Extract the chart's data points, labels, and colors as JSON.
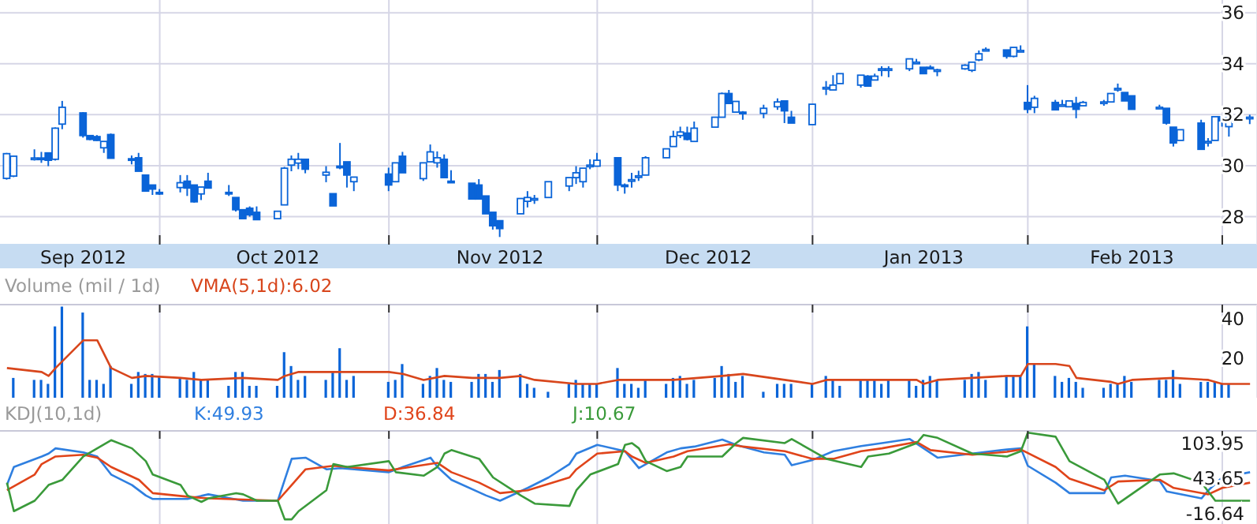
{
  "chart_data": [
    {
      "type": "candlestick",
      "color": "#0a64d8",
      "x": [
        "2012-09-06",
        "2012-09-07",
        "2012-09-10",
        "2012-09-11",
        "2012-09-12",
        "2012-09-13",
        "2012-09-14",
        "2012-09-17",
        "2012-09-18",
        "2012-09-19",
        "2012-09-20",
        "2012-09-21",
        "2012-09-24",
        "2012-09-25",
        "2012-09-26",
        "2012-09-27",
        "2012-09-28",
        "2012-10-01",
        "2012-10-02",
        "2012-10-03",
        "2012-10-04",
        "2012-10-05",
        "2012-10-08",
        "2012-10-09",
        "2012-10-10",
        "2012-10-11",
        "2012-10-12",
        "2012-10-15",
        "2012-10-16",
        "2012-10-17",
        "2012-10-18",
        "2012-10-19",
        "2012-10-22",
        "2012-10-23",
        "2012-10-24",
        "2012-10-25",
        "2012-10-26",
        "2012-10-31",
        "2012-11-01",
        "2012-11-02",
        "2012-11-05",
        "2012-11-06",
        "2012-11-07",
        "2012-11-08",
        "2012-11-09",
        "2012-11-12",
        "2012-11-13",
        "2012-11-14",
        "2012-11-15",
        "2012-11-16",
        "2012-11-19",
        "2012-11-20",
        "2012-11-21",
        "2012-11-23",
        "2012-11-26",
        "2012-11-27",
        "2012-11-28",
        "2012-11-29",
        "2012-11-30",
        "2012-12-03",
        "2012-12-04",
        "2012-12-05",
        "2012-12-06",
        "2012-12-07",
        "2012-12-10",
        "2012-12-11",
        "2012-12-12",
        "2012-12-13",
        "2012-12-14",
        "2012-12-17",
        "2012-12-18",
        "2012-12-19",
        "2012-12-20",
        "2012-12-21",
        "2012-12-24",
        "2012-12-26",
        "2012-12-27",
        "2012-12-28",
        "2012-12-31",
        "2013-01-02",
        "2013-01-03",
        "2013-01-04",
        "2013-01-07",
        "2013-01-08",
        "2013-01-09",
        "2013-01-10",
        "2013-01-11",
        "2013-01-14",
        "2013-01-15",
        "2013-01-16",
        "2013-01-17",
        "2013-01-18",
        "2013-01-22",
        "2013-01-23",
        "2013-01-24",
        "2013-01-25",
        "2013-01-28",
        "2013-01-29",
        "2013-01-30",
        "2013-01-31",
        "2013-02-01",
        "2013-02-04",
        "2013-02-05",
        "2013-02-06",
        "2013-02-07",
        "2013-02-08",
        "2013-02-11",
        "2013-02-12",
        "2013-02-13",
        "2013-02-14",
        "2013-02-15",
        "2013-02-19",
        "2013-02-20",
        "2013-02-21",
        "2013-02-22",
        "2013-02-25",
        "2013-02-26",
        "2013-02-27",
        "2013-02-28",
        "2013-03-01",
        "2013-03-04"
      ],
      "ohlc": [
        [
          29.5,
          30.5,
          29.45,
          30.47
        ],
        [
          29.59,
          30.4,
          29.55,
          30.37
        ],
        [
          30.28,
          30.64,
          30.2,
          30.3
        ],
        [
          30.3,
          30.54,
          30.11,
          30.26
        ],
        [
          30.5,
          30.5,
          29.98,
          30.21
        ],
        [
          30.25,
          31.5,
          30.2,
          31.47
        ],
        [
          31.63,
          32.54,
          31.43,
          32.29
        ],
        [
          32.07,
          32.1,
          31.1,
          31.18
        ],
        [
          31.18,
          31.2,
          31.0,
          31.03
        ],
        [
          31.14,
          31.2,
          30.97,
          30.99
        ],
        [
          30.7,
          30.95,
          30.5,
          30.95
        ],
        [
          31.22,
          31.26,
          30.28,
          30.29
        ],
        [
          30.27,
          30.4,
          30.05,
          30.25
        ],
        [
          30.31,
          30.5,
          29.78,
          29.78
        ],
        [
          29.63,
          29.63,
          29.0,
          29.0
        ],
        [
          29.24,
          29.24,
          28.85,
          29.08
        ],
        [
          28.95,
          29.08,
          28.85,
          28.92
        ],
        [
          29.14,
          29.63,
          28.95,
          29.33
        ],
        [
          29.39,
          29.63,
          28.81,
          29.12
        ],
        [
          29.24,
          29.24,
          28.55,
          28.58
        ],
        [
          28.89,
          29.16,
          28.65,
          29.16
        ],
        [
          29.39,
          29.72,
          29.12,
          29.12
        ],
        [
          28.95,
          29.24,
          28.81,
          28.94
        ],
        [
          28.75,
          28.75,
          28.2,
          28.27
        ],
        [
          28.27,
          28.27,
          27.92,
          27.92
        ],
        [
          28.33,
          28.4,
          28.0,
          28.07
        ],
        [
          28.17,
          28.4,
          27.88,
          27.88
        ],
        [
          27.92,
          28.21,
          27.92,
          28.21
        ],
        [
          28.46,
          29.95,
          28.46,
          29.9
        ],
        [
          30.02,
          30.4,
          29.78,
          30.25
        ],
        [
          30.1,
          30.5,
          29.86,
          30.25
        ],
        [
          30.25,
          30.25,
          29.7,
          29.86
        ],
        [
          29.63,
          29.98,
          29.35,
          29.74
        ],
        [
          28.9,
          28.9,
          28.42,
          28.42
        ],
        [
          29.98,
          30.89,
          29.86,
          29.96
        ],
        [
          30.15,
          30.15,
          29.14,
          29.63
        ],
        [
          29.37,
          29.55,
          29.0,
          29.55
        ],
        [
          29.67,
          29.92,
          29.0,
          29.24
        ],
        [
          29.37,
          30.11,
          29.37,
          30.11
        ],
        [
          30.37,
          30.54,
          29.72,
          29.72
        ],
        [
          29.49,
          30.11,
          29.4,
          30.11
        ],
        [
          30.15,
          30.83,
          30.15,
          30.54
        ],
        [
          30.11,
          30.56,
          29.92,
          30.31
        ],
        [
          30.25,
          30.44,
          29.53,
          29.53
        ],
        [
          29.39,
          29.82,
          29.33,
          29.37
        ],
        [
          29.31,
          29.31,
          28.69,
          28.69
        ],
        [
          29.24,
          29.47,
          28.69,
          28.69
        ],
        [
          28.81,
          28.81,
          28.11,
          28.11
        ],
        [
          28.17,
          28.17,
          27.49,
          27.64
        ],
        [
          27.84,
          27.84,
          27.2,
          27.53
        ],
        [
          28.11,
          28.71,
          28.11,
          28.71
        ],
        [
          28.6,
          29.0,
          28.36,
          28.75
        ],
        [
          28.71,
          28.85,
          28.5,
          28.71
        ],
        [
          28.75,
          29.37,
          28.75,
          29.37
        ],
        [
          29.2,
          29.53,
          29.0,
          29.53
        ],
        [
          29.53,
          29.98,
          29.28,
          29.72
        ],
        [
          29.37,
          29.9,
          29.14,
          29.9
        ],
        [
          30.0,
          30.25,
          29.86,
          30.02
        ],
        [
          29.98,
          30.5,
          29.98,
          30.21
        ],
        [
          30.31,
          30.31,
          29.0,
          29.24
        ],
        [
          29.24,
          29.3,
          28.9,
          29.22
        ],
        [
          29.4,
          29.72,
          29.14,
          29.45
        ],
        [
          29.6,
          29.8,
          29.4,
          29.6
        ],
        [
          29.63,
          30.37,
          29.63,
          30.31
        ],
        [
          30.31,
          30.66,
          30.31,
          30.66
        ],
        [
          30.75,
          31.37,
          30.75,
          31.14
        ],
        [
          31.18,
          31.53,
          31.08,
          31.32
        ],
        [
          31.28,
          31.53,
          30.99,
          31.03
        ],
        [
          30.95,
          31.73,
          30.95,
          31.47
        ],
        [
          31.51,
          31.9,
          31.51,
          31.9
        ],
        [
          31.9,
          32.87,
          31.9,
          32.83
        ],
        [
          32.83,
          32.97,
          32.44,
          32.44
        ],
        [
          32.1,
          32.52,
          32.1,
          32.52
        ],
        [
          32.1,
          32.14,
          31.8,
          32.07
        ],
        [
          32.05,
          32.39,
          31.86,
          32.25
        ],
        [
          32.31,
          32.64,
          32.19,
          32.5
        ],
        [
          32.54,
          32.54,
          31.67,
          32.15
        ],
        [
          31.9,
          32.15,
          31.67,
          31.67
        ],
        [
          31.61,
          32.41,
          31.61,
          32.41
        ],
        [
          33.06,
          33.32,
          32.77,
          33.07
        ],
        [
          32.97,
          33.55,
          32.97,
          33.16
        ],
        [
          33.22,
          33.61,
          33.22,
          33.61
        ],
        [
          33.16,
          33.55,
          33.06,
          33.55
        ],
        [
          33.51,
          33.55,
          33.12,
          33.12
        ],
        [
          33.36,
          33.61,
          33.36,
          33.51
        ],
        [
          33.8,
          33.9,
          33.51,
          33.8
        ],
        [
          33.8,
          33.9,
          33.47,
          33.8
        ],
        [
          33.8,
          34.19,
          33.71,
          34.19
        ],
        [
          34.06,
          34.19,
          34.0,
          34.06
        ],
        [
          33.86,
          33.86,
          33.61,
          33.61
        ],
        [
          33.86,
          33.94,
          33.8,
          33.84
        ],
        [
          33.76,
          33.8,
          33.51,
          33.76
        ],
        [
          33.8,
          33.98,
          33.76,
          33.94
        ],
        [
          33.74,
          34.06,
          33.67,
          34.06
        ],
        [
          34.15,
          34.52,
          34.1,
          34.39
        ],
        [
          34.54,
          34.64,
          34.5,
          34.56
        ],
        [
          34.54,
          34.54,
          34.2,
          34.29
        ],
        [
          34.29,
          34.64,
          34.25,
          34.64
        ],
        [
          34.52,
          34.72,
          34.48,
          34.52
        ],
        [
          32.48,
          33.16,
          32.06,
          32.21
        ],
        [
          32.29,
          32.74,
          32.06,
          32.64
        ],
        [
          32.48,
          32.58,
          32.19,
          32.19
        ],
        [
          32.39,
          32.58,
          32.35,
          32.39
        ],
        [
          32.31,
          32.54,
          32.31,
          32.54
        ],
        [
          32.44,
          32.7,
          31.86,
          32.21
        ],
        [
          32.35,
          32.54,
          32.35,
          32.48
        ],
        [
          32.5,
          32.58,
          32.35,
          32.5
        ],
        [
          32.5,
          32.83,
          32.5,
          32.83
        ],
        [
          33.03,
          33.22,
          32.9,
          33.03
        ],
        [
          32.87,
          32.87,
          32.54,
          32.54
        ],
        [
          32.74,
          32.74,
          32.21,
          32.21
        ],
        [
          32.29,
          32.39,
          32.25,
          32.29
        ],
        [
          32.25,
          32.25,
          31.61,
          31.67
        ],
        [
          31.51,
          31.51,
          30.75,
          30.89
        ],
        [
          30.99,
          31.41,
          30.99,
          31.41
        ],
        [
          31.67,
          31.8,
          30.64,
          30.64
        ],
        [
          30.95,
          31.08,
          30.75,
          30.95
        ],
        [
          30.99,
          31.92,
          30.99,
          31.92
        ],
        [
          31.92,
          31.96,
          31.53,
          31.76
        ],
        [
          31.53,
          31.96,
          31.14,
          31.92
        ],
        [
          31.86,
          32.0,
          31.63,
          31.9
        ]
      ],
      "xlim": [
        "2012-09-05",
        "2013-03-05"
      ],
      "xticks": [
        {
          "value": "2012-09-17",
          "label": "Sep 2012"
        },
        {
          "value": "2012-09-28",
          "label": null
        },
        {
          "value": "2012-10-15",
          "label": "Oct 2012"
        },
        {
          "value": "2012-10-31",
          "label": null
        },
        {
          "value": "2012-11-16",
          "label": "Nov 2012"
        },
        {
          "value": "2012-11-30",
          "label": null
        },
        {
          "value": "2012-12-16",
          "label": "Dec 2012"
        },
        {
          "value": "2012-12-31",
          "label": null
        },
        {
          "value": "2013-01-16",
          "label": "Jan 2013"
        },
        {
          "value": "2013-01-31",
          "label": null
        },
        {
          "value": "2013-02-15",
          "label": "Feb 2013"
        },
        {
          "value": "2013-02-28",
          "label": null
        }
      ],
      "ylim": [
        26.9,
        36.5
      ],
      "yticks": [
        28,
        30,
        32,
        34,
        36
      ],
      "grid": true
    },
    {
      "type": "bar",
      "title": "Volume (mil / 1d)",
      "legend": "top",
      "x": [
        "2012-09-07",
        "2012-09-10",
        "2012-09-11",
        "2012-09-12",
        "2012-09-13",
        "2012-09-14",
        "2012-09-17",
        "2012-09-18",
        "2012-09-19",
        "2012-09-20",
        "2012-09-21",
        "2012-09-24",
        "2012-09-25",
        "2012-09-26",
        "2012-09-27",
        "2012-09-28",
        "2012-10-01",
        "2012-10-02",
        "2012-10-03",
        "2012-10-04",
        "2012-10-05",
        "2012-10-08",
        "2012-10-09",
        "2012-10-10",
        "2012-10-11",
        "2012-10-12",
        "2012-10-15",
        "2012-10-16",
        "2012-10-17",
        "2012-10-18",
        "2012-10-19",
        "2012-10-22",
        "2012-10-23",
        "2012-10-24",
        "2012-10-25",
        "2012-10-26",
        "2012-10-31",
        "2012-11-01",
        "2012-11-02",
        "2012-11-05",
        "2012-11-06",
        "2012-11-07",
        "2012-11-08",
        "2012-11-09",
        "2012-11-12",
        "2012-11-13",
        "2012-11-14",
        "2012-11-15",
        "2012-11-16",
        "2012-11-19",
        "2012-11-20",
        "2012-11-21",
        "2012-11-23",
        "2012-11-26",
        "2012-11-27",
        "2012-11-28",
        "2012-11-29",
        "2012-11-30",
        "2012-12-03",
        "2012-12-04",
        "2012-12-05",
        "2012-12-06",
        "2012-12-07",
        "2012-12-10",
        "2012-12-11",
        "2012-12-12",
        "2012-12-13",
        "2012-12-14",
        "2012-12-17",
        "2012-12-18",
        "2012-12-19",
        "2012-12-20",
        "2012-12-21",
        "2012-12-24",
        "2012-12-26",
        "2012-12-27",
        "2012-12-28",
        "2012-12-31",
        "2013-01-02",
        "2013-01-03",
        "2013-01-04",
        "2013-01-07",
        "2013-01-08",
        "2013-01-09",
        "2013-01-10",
        "2013-01-11",
        "2013-01-14",
        "2013-01-15",
        "2013-01-16",
        "2013-01-17",
        "2013-01-18",
        "2013-01-22",
        "2013-01-23",
        "2013-01-24",
        "2013-01-25",
        "2013-01-28",
        "2013-01-29",
        "2013-01-30",
        "2013-01-31",
        "2013-02-01",
        "2013-02-04",
        "2013-02-05",
        "2013-02-06",
        "2013-02-07",
        "2013-02-08",
        "2013-02-11",
        "2013-02-12",
        "2013-02-13",
        "2013-02-14",
        "2013-02-15",
        "2013-02-19",
        "2013-02-20",
        "2013-02-21",
        "2013-02-22",
        "2013-02-25",
        "2013-02-26",
        "2013-02-27",
        "2013-02-28",
        "2013-03-01"
      ],
      "series": [
        {
          "type": "bar",
          "color": "#0a64d8",
          "values": [
            10,
            9,
            9,
            7,
            36,
            46,
            43,
            9,
            9,
            7,
            16,
            7,
            13,
            12,
            12,
            11,
            10,
            9,
            13,
            9,
            9,
            6,
            13,
            13,
            6,
            6,
            6,
            23,
            16,
            9,
            11,
            9,
            13,
            25,
            9,
            11,
            8,
            9,
            17,
            7,
            11,
            15,
            9,
            8,
            8,
            12,
            12,
            8,
            14,
            12,
            7,
            5,
            3,
            7,
            9,
            7,
            7,
            7,
            15,
            7,
            7,
            5,
            9,
            7,
            10,
            11,
            7,
            9,
            10,
            16,
            12,
            8,
            11,
            3,
            7,
            7,
            7,
            7,
            11,
            9,
            6,
            9,
            9,
            9,
            7,
            9,
            9,
            6,
            9,
            11,
            9,
            9,
            12,
            13,
            9,
            11,
            11,
            11,
            36,
            17,
            11,
            8,
            10,
            8,
            5,
            5,
            7,
            7,
            11,
            8,
            9,
            9,
            14,
            7,
            8,
            8,
            8,
            7,
            7
          ]
        },
        {
          "type": "line",
          "name": "VMA(5,1d):6.02",
          "color": "#d8461c",
          "x": [
            "2012-09-06",
            "2012-09-11",
            "2012-09-12",
            "2012-09-13",
            "2012-09-17",
            "2012-09-19",
            "2012-09-21",
            "2012-09-24",
            "2012-09-26",
            "2012-10-01",
            "2012-10-04",
            "2012-10-10",
            "2012-10-15",
            "2012-10-16",
            "2012-10-18",
            "2012-10-25",
            "2012-10-31",
            "2012-11-02",
            "2012-11-05",
            "2012-11-08",
            "2012-11-12",
            "2012-11-16",
            "2012-11-19",
            "2012-11-21",
            "2012-11-27",
            "2012-11-30",
            "2012-12-03",
            "2012-12-05",
            "2012-12-11",
            "2012-12-18",
            "2012-12-21",
            "2012-12-27",
            "2012-12-31",
            "2013-01-02",
            "2013-01-15",
            "2013-01-16",
            "2013-01-18",
            "2013-01-28",
            "2013-01-30",
            "2013-01-31",
            "2013-02-04",
            "2013-02-06",
            "2013-02-07",
            "2013-02-12",
            "2013-02-13",
            "2013-02-15",
            "2013-02-21",
            "2013-02-26",
            "2013-02-28",
            "2013-03-04"
          ],
          "values": [
            15,
            13,
            11,
            15,
            29,
            29,
            15,
            10,
            11,
            10,
            9,
            10,
            9,
            11,
            13,
            13,
            13,
            12,
            9,
            11,
            10,
            10,
            11,
            9,
            7,
            7,
            9,
            9,
            9,
            11,
            12,
            9,
            7,
            9,
            9,
            7,
            9,
            11,
            11,
            17,
            17,
            16,
            10,
            8,
            7,
            9,
            10,
            9,
            7,
            7
          ]
        }
      ],
      "xlim": [
        "2012-09-05",
        "2013-03-05"
      ],
      "xticks": [
        {
          "value": "2012-09-28",
          "label": null
        },
        {
          "value": "2012-10-31",
          "label": null
        },
        {
          "value": "2012-11-30",
          "label": null
        },
        {
          "value": "2012-12-31",
          "label": null
        },
        {
          "value": "2013-01-31",
          "label": null
        },
        {
          "value": "2013-02-28",
          "label": null
        }
      ],
      "ylim": [
        0,
        47
      ],
      "yticks": [
        20,
        40
      ],
      "grid": "x",
      "tick_labels": "y"
    },
    {
      "type": "line",
      "title": "KDJ(10,1d)",
      "legend": "top",
      "series": [
        {
          "name": "K:49.93",
          "color": "#2f7fe0",
          "x": [
            "2012-09-06",
            "2012-09-07",
            "2012-09-11",
            "2012-09-12",
            "2012-09-13",
            "2012-09-17",
            "2012-09-19",
            "2012-09-21",
            "2012-09-24",
            "2012-09-26",
            "2012-09-27",
            "2012-10-02",
            "2012-10-05",
            "2012-10-10",
            "2012-10-15",
            "2012-10-16",
            "2012-10-17",
            "2012-10-19",
            "2012-10-22",
            "2012-10-24",
            "2012-10-31",
            "2012-11-02",
            "2012-11-06",
            "2012-11-07",
            "2012-11-09",
            "2012-11-14",
            "2012-11-16",
            "2012-11-20",
            "2012-11-23",
            "2012-11-26",
            "2012-11-27",
            "2012-11-30",
            "2012-12-04",
            "2012-12-06",
            "2012-12-10",
            "2012-12-12",
            "2012-12-14",
            "2012-12-18",
            "2012-12-20",
            "2012-12-24",
            "2012-12-27",
            "2012-12-28",
            "2012-12-31",
            "2013-01-03",
            "2013-01-07",
            "2013-01-10",
            "2013-01-14",
            "2013-01-16",
            "2013-01-18",
            "2013-01-23",
            "2013-01-28",
            "2013-01-30",
            "2013-01-31",
            "2013-02-04",
            "2013-02-06",
            "2013-02-11",
            "2013-02-12",
            "2013-02-14",
            "2013-02-19",
            "2013-02-20",
            "2013-02-25",
            "2013-02-26",
            "2013-02-28",
            "2013-03-04"
          ],
          "values": [
            32,
            63,
            81,
            86,
            95,
            88,
            81,
            50,
            32,
            14,
            8,
            8,
            16,
            5,
            5,
            41,
            77,
            79,
            59,
            61,
            54,
            63,
            79,
            63,
            41,
            14,
            5,
            27,
            45,
            68,
            86,
            101,
            90,
            61,
            88,
            95,
            98,
            110,
            101,
            88,
            84,
            66,
            75,
            90,
            99,
            104,
            111,
            95,
            79,
            86,
            93,
            95,
            65,
            36,
            18,
            18,
            45,
            48,
            39,
            21,
            9,
            23,
            45,
            54
          ]
        },
        {
          "name": "D:36.84",
          "color": "#e0441a",
          "x": [
            "2012-09-06",
            "2012-09-10",
            "2012-09-11",
            "2012-09-13",
            "2012-09-17",
            "2012-09-19",
            "2012-09-21",
            "2012-09-25",
            "2012-09-27",
            "2012-10-02",
            "2012-10-05",
            "2012-10-10",
            "2012-10-15",
            "2012-10-17",
            "2012-10-19",
            "2012-10-23",
            "2012-10-25",
            "2012-10-31",
            "2012-11-02",
            "2012-11-07",
            "2012-11-09",
            "2012-11-13",
            "2012-11-16",
            "2012-11-20",
            "2012-11-26",
            "2012-11-27",
            "2012-11-30",
            "2012-12-04",
            "2012-12-05",
            "2012-12-07",
            "2012-12-11",
            "2012-12-13",
            "2012-12-19",
            "2012-12-21",
            "2012-12-27",
            "2012-12-31",
            "2013-01-03",
            "2013-01-07",
            "2013-01-10",
            "2013-01-15",
            "2013-01-17",
            "2013-01-23",
            "2013-01-28",
            "2013-01-30",
            "2013-02-04",
            "2013-02-06",
            "2013-02-11",
            "2013-02-13",
            "2013-02-19",
            "2013-02-21",
            "2013-02-26",
            "2013-02-28",
            "2013-03-04"
          ],
          "values": [
            23,
            50,
            68,
            81,
            84,
            79,
            63,
            41,
            18,
            12,
            9,
            7,
            5,
            32,
            59,
            65,
            63,
            57,
            61,
            70,
            54,
            36,
            18,
            23,
            45,
            59,
            86,
            90,
            81,
            70,
            81,
            90,
            102,
            98,
            90,
            77,
            77,
            90,
            95,
            106,
            92,
            84,
            89,
            93,
            63,
            43,
            23,
            38,
            41,
            27,
            16,
            27,
            36
          ]
        },
        {
          "name": "J:10.67",
          "color": "#3a9a3a",
          "x": [
            "2012-09-06",
            "2012-09-07",
            "2012-09-10",
            "2012-09-12",
            "2012-09-14",
            "2012-09-17",
            "2012-09-19",
            "2012-09-21",
            "2012-09-24",
            "2012-09-26",
            "2012-09-27",
            "2012-10-01",
            "2012-10-02",
            "2012-10-04",
            "2012-10-05",
            "2012-10-09",
            "2012-10-10",
            "2012-10-12",
            "2012-10-15",
            "2012-10-16",
            "2012-10-17",
            "2012-10-18",
            "2012-10-22",
            "2012-10-23",
            "2012-10-25",
            "2012-10-31",
            "2012-11-01",
            "2012-11-05",
            "2012-11-07",
            "2012-11-08",
            "2012-11-09",
            "2012-11-13",
            "2012-11-15",
            "2012-11-19",
            "2012-11-21",
            "2012-11-26",
            "2012-11-27",
            "2012-11-29",
            "2012-12-03",
            "2012-12-04",
            "2012-12-05",
            "2012-12-06",
            "2012-12-07",
            "2012-12-10",
            "2012-12-12",
            "2012-12-13",
            "2012-12-18",
            "2012-12-20",
            "2012-12-21",
            "2012-12-27",
            "2012-12-28",
            "2013-01-02",
            "2013-01-07",
            "2013-01-08",
            "2013-01-11",
            "2013-01-15",
            "2013-01-16",
            "2013-01-18",
            "2013-01-23",
            "2013-01-28",
            "2013-01-30",
            "2013-01-31",
            "2013-02-04",
            "2013-02-06",
            "2013-02-11",
            "2013-02-13",
            "2013-02-19",
            "2013-02-21",
            "2013-02-25",
            "2013-02-27",
            "2013-03-04"
          ],
          "values": [
            36,
            -13,
            5,
            32,
            41,
            81,
            95,
            109,
            95,
            73,
            50,
            32,
            14,
            3,
            9,
            18,
            16,
            5,
            5,
            -27,
            -27,
            -13,
            23,
            68,
            63,
            73,
            54,
            48,
            63,
            86,
            92,
            77,
            45,
            14,
            0,
            -4,
            23,
            50,
            68,
            101,
            104,
            95,
            73,
            56,
            63,
            81,
            81,
            104,
            113,
            104,
            111,
            77,
            63,
            81,
            86,
            104,
            118,
            113,
            86,
            81,
            90,
            122,
            115,
            73,
            41,
            0,
            50,
            52,
            36,
            5,
            5
          ]
        }
      ],
      "xlim": [
        "2012-09-05",
        "2013-03-05"
      ],
      "xticks": [
        {
          "value": "2012-09-28",
          "label": null
        },
        {
          "value": "2012-10-31",
          "label": null
        },
        {
          "value": "2012-11-30",
          "label": null
        },
        {
          "value": "2012-12-31",
          "label": null
        },
        {
          "value": "2013-01-31",
          "label": null
        },
        {
          "value": "2013-02-28",
          "label": null
        }
      ],
      "ylim": [
        -35,
        125
      ],
      "yticks": [
        -16.64,
        43.65,
        103.95
      ],
      "grid": "x",
      "tick_labels": "y"
    }
  ]
}
